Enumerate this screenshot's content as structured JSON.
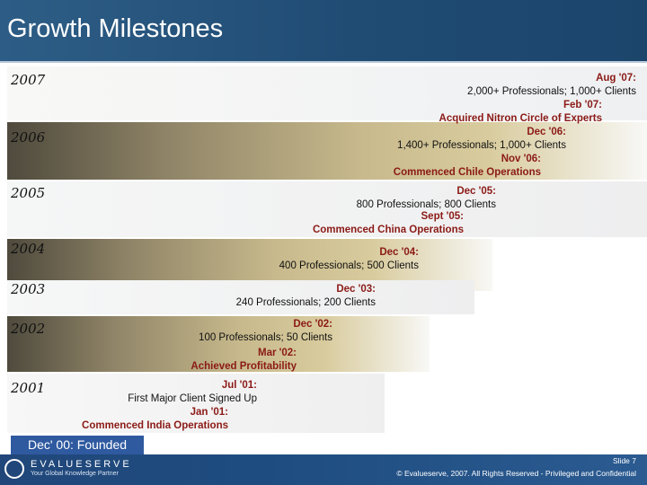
{
  "header": {
    "title": "Growth Milestones"
  },
  "timeline": {
    "y2007": "2007",
    "y2006": "2006",
    "y2005": "2005",
    "y2004": "2004",
    "y2003": "2003",
    "y2002": "2002",
    "y2001": "2001"
  },
  "milestones": {
    "m2007a_date": "Aug '07:",
    "m2007a_detail": "2,000+ Professionals; 1,000+ Clients",
    "m2007b_date": "Feb '07:",
    "m2007b_detail": "Acquired Nitron Circle of Experts",
    "m2006a_date": "Dec '06:",
    "m2006a_detail": "1,400+ Professionals; 1,000+ Clients",
    "m2006b_date": "Nov '06:",
    "m2006b_detail": "Commenced Chile Operations",
    "m2005a_date": "Dec '05:",
    "m2005a_detail": "800 Professionals; 800 Clients",
    "m2005b_date": "Sept '05:",
    "m2005b_detail": "Commenced China Operations",
    "m2004_date": "Dec '04:",
    "m2004_detail": "400 Professionals; 500 Clients",
    "m2003_date": "Dec '03:",
    "m2003_detail": "240 Professionals; 200 Clients",
    "m2002a_date": "Dec '02:",
    "m2002a_detail": "100 Professionals; 50 Clients",
    "m2002b_date": "Mar '02:",
    "m2002b_detail": "Achieved Profitability",
    "m2001a_date": "Jul '01:",
    "m2001a_detail": "First Major Client Signed Up",
    "m2001b_date": "Jan '01:",
    "m2001b_detail": "Commenced India Operations",
    "founded": "Dec' 00: Founded"
  },
  "footer": {
    "logo_text": "EVALUESERVE",
    "logo_sub": "Your Global Knowledge Partner",
    "slide": "Slide 7",
    "copyright": "© Evalueserve, 2007. All Rights Reserved - Privileged and Confidential"
  }
}
